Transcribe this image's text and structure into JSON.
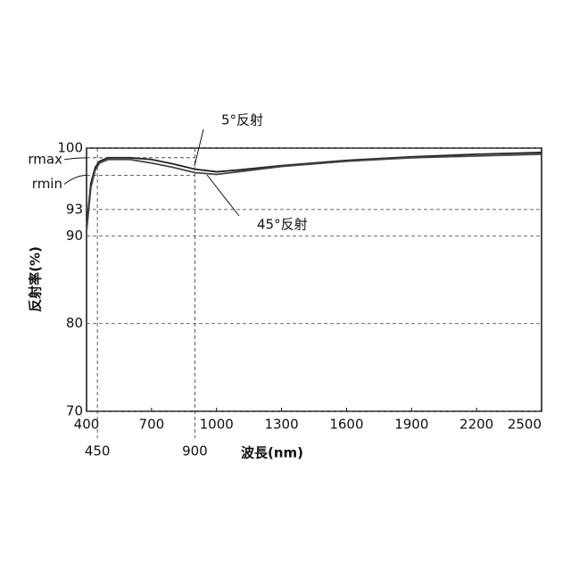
{
  "chart_data": {
    "type": "line",
    "xlabel": "波長(nm)",
    "ylabel": "反射率(%)",
    "x": [
      400,
      420,
      440,
      460,
      500,
      600,
      700,
      800,
      900,
      1000,
      1100,
      1300,
      1600,
      1900,
      2200,
      2500
    ],
    "series": [
      {
        "name": "5°反射",
        "color": "#222222",
        "values": [
          91,
          96,
          97.8,
          98.5,
          98.9,
          98.9,
          98.7,
          98.2,
          97.6,
          97.3,
          97.5,
          98.0,
          98.6,
          99.0,
          99.3,
          99.5
        ]
      },
      {
        "name": "45°反射",
        "color": "#444444",
        "values": [
          90.5,
          95.5,
          97.5,
          98.3,
          98.7,
          98.7,
          98.3,
          97.8,
          97.2,
          97.0,
          97.3,
          97.9,
          98.5,
          98.9,
          99.1,
          99.3
        ]
      }
    ],
    "xlim": [
      400,
      2500
    ],
    "xticks": [
      400,
      700,
      1000,
      1300,
      1600,
      1900,
      2200,
      2500
    ],
    "xmarks": [
      450,
      900
    ],
    "ylim": [
      70,
      100
    ],
    "yticks": [
      70,
      80,
      90,
      93,
      100
    ],
    "refs": [
      {
        "label": "rmax",
        "value": 98.9
      },
      {
        "label": "rmin",
        "value": 96.9
      }
    ],
    "grid": true
  }
}
